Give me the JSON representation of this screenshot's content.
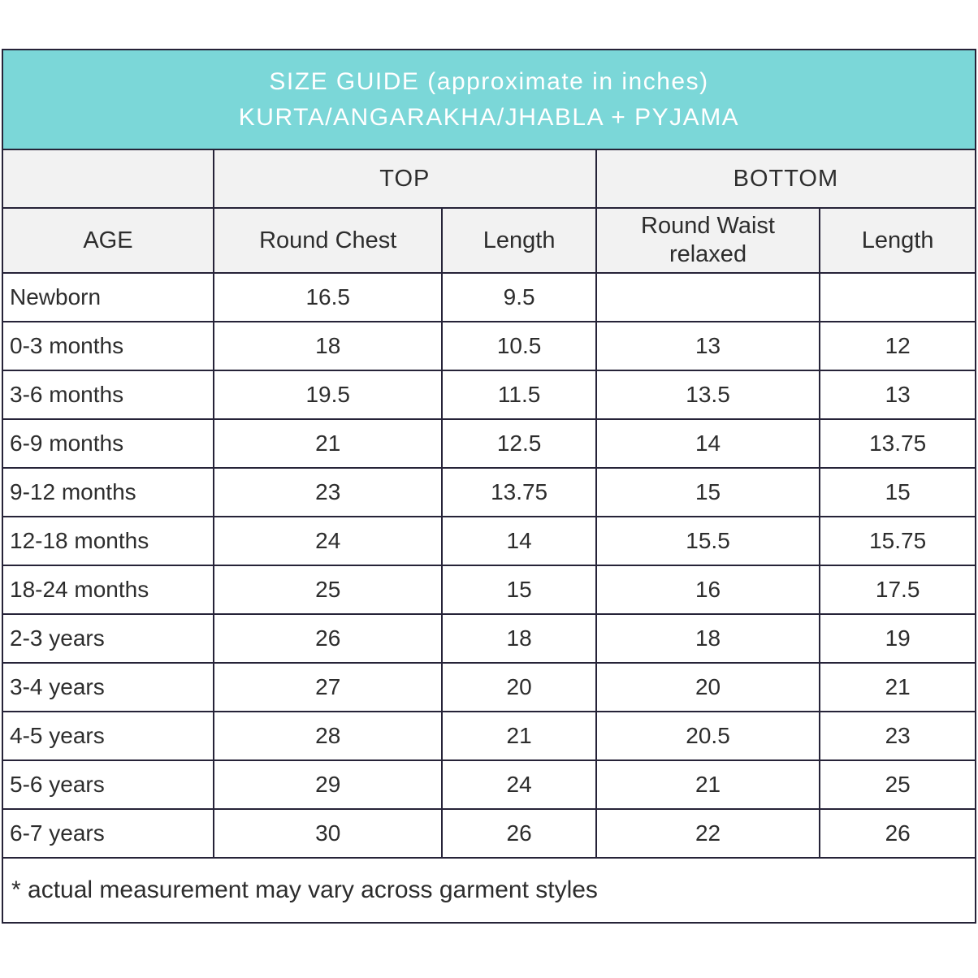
{
  "header": {
    "title_line1": "SIZE GUIDE (approximate in inches)",
    "title_line2": "KURTA/ANGARAKHA/JHABLA + PYJAMA"
  },
  "colors": {
    "header_background": "#7bd7d8",
    "header_text": "#ffffff",
    "subheader_background": "#f2f2f2",
    "border": "#262338",
    "body_text": "#2d2d2d"
  },
  "table": {
    "group_top_label": "TOP",
    "group_bottom_label": "BOTTOM",
    "column_headers": [
      "AGE",
      "Round Chest",
      "Length",
      "Round Waist relaxed",
      "Length"
    ],
    "rows": [
      [
        "Newborn",
        "16.5",
        "9.5",
        "",
        ""
      ],
      [
        "0-3 months",
        "18",
        "10.5",
        "13",
        "12"
      ],
      [
        "3-6 months",
        "19.5",
        "11.5",
        "13.5",
        "13"
      ],
      [
        "6-9 months",
        "21",
        "12.5",
        "14",
        "13.75"
      ],
      [
        "9-12 months",
        "23",
        "13.75",
        "15",
        "15"
      ],
      [
        "12-18 months",
        "24",
        "14",
        "15.5",
        "15.75"
      ],
      [
        "18-24 months",
        "25",
        "15",
        "16",
        "17.5"
      ],
      [
        "2-3 years",
        "26",
        "18",
        "18",
        "19"
      ],
      [
        "3-4 years",
        "27",
        "20",
        "20",
        "21"
      ],
      [
        "4-5 years",
        "28",
        "21",
        "20.5",
        "23"
      ],
      [
        "5-6 years",
        "29",
        "24",
        "21",
        "25"
      ],
      [
        "6-7 years",
        "30",
        "26",
        "22",
        "26"
      ]
    ]
  },
  "footnote": "* actual measurement may vary across garment styles"
}
